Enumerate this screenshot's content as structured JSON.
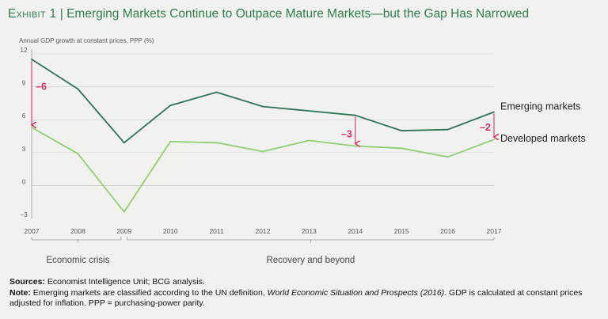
{
  "title": {
    "exhibit": "Exhibit 1",
    "separator": "|",
    "text": "Emerging Markets Continue to Outpace Mature Markets—but the Gap Has Narrowed"
  },
  "colors": {
    "title": "#2f7d4c",
    "emerging": "#2e7352",
    "developed": "#8fcf6f",
    "annotation": "#d1325b",
    "axis": "#9a9a9a",
    "grid": "#c9c9c9",
    "text": "#555555"
  },
  "chart_data": {
    "type": "line",
    "title": "Emerging Markets Continue to Outpace Mature Markets—but the Gap Has Narrowed",
    "ylabel": "Annual GDP growth at constant prices, PPP (%)",
    "xlabel": "",
    "x": [
      "2007",
      "2008",
      "2009",
      "2010",
      "2011",
      "2012",
      "2013",
      "2014",
      "2015",
      "2016",
      "2017"
    ],
    "ylim": [
      -3,
      12
    ],
    "yticks": [
      "12",
      "9",
      "6",
      "3",
      "0",
      "−3"
    ],
    "ytick_values": [
      12,
      9,
      6,
      3,
      0,
      -3
    ],
    "series": [
      {
        "name": "Emerging markets",
        "values": [
          11.5,
          8.8,
          3.9,
          7.3,
          8.5,
          7.2,
          6.8,
          6.4,
          5.0,
          5.1,
          6.7
        ]
      },
      {
        "name": "Developed markets",
        "values": [
          5.3,
          2.9,
          -2.4,
          4.0,
          3.9,
          3.1,
          4.1,
          3.6,
          3.4,
          2.6,
          4.2
        ]
      }
    ],
    "annotations": [
      {
        "label": "–6",
        "x": "2007",
        "from": 11.5,
        "to": 5.3
      },
      {
        "label": "–3",
        "x": "2014",
        "from": 6.4,
        "to": 3.6
      },
      {
        "label": "–2",
        "x": "2017",
        "from": 6.7,
        "to": 4.2
      }
    ],
    "periods": [
      {
        "label": "Economic crisis",
        "start": "2007",
        "end": "2009"
      },
      {
        "label": "Recovery and beyond",
        "start": "2009",
        "end": "2017"
      }
    ]
  },
  "notes": {
    "sources_label": "Sources:",
    "sources_text": "Economist Intelligence Unit; BCG analysis.",
    "note_label": "Note:",
    "note_text_1": "Emerging markets are classified according to the UN definition, ",
    "note_italic": "World Economic Situation and Prospects (2016)",
    "note_text_2": ". GDP is calculated at constant prices adjusted for inflation. PPP = purchasing-power parity."
  }
}
